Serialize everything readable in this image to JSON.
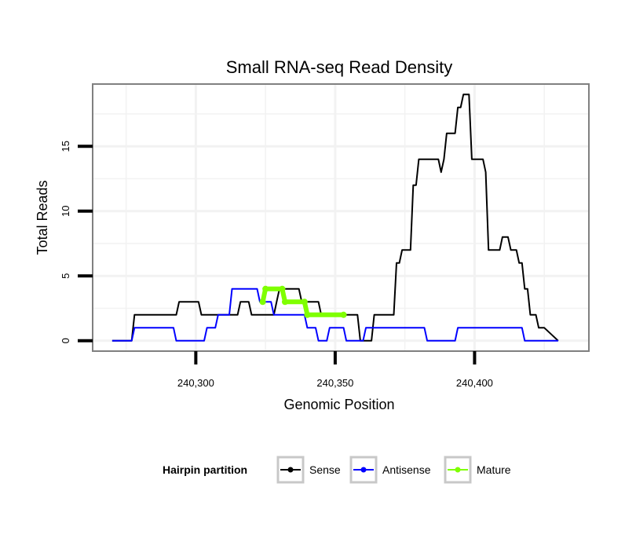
{
  "chart_data": {
    "type": "line",
    "title": "Small RNA-seq Read Density",
    "xlabel": "Genomic Position",
    "ylabel": "Total Reads",
    "xlim": [
      240263,
      240441
    ],
    "ylim": [
      -0.8,
      19.8
    ],
    "x_ticks": [
      240300,
      240350,
      240400
    ],
    "x_tick_labels": [
      "240,300",
      "240,350",
      "240,400"
    ],
    "y_ticks": [
      0,
      5,
      10,
      15
    ],
    "y_tick_labels": [
      "0",
      "5",
      "10",
      "15"
    ],
    "grid": true,
    "legend": {
      "title": "Hairpin partition",
      "position": "bottom",
      "entries": [
        {
          "name": "Sense",
          "color": "#000000"
        },
        {
          "name": "Antisense",
          "color": "#0000ff"
        },
        {
          "name": "Mature",
          "color": "#7fff00"
        }
      ]
    },
    "series": [
      {
        "name": "Sense",
        "color": "#000000",
        "x": [
          240270,
          240277,
          240278,
          240293,
          240294,
          240301,
          240302,
          240315,
          240316,
          240319,
          240320,
          240328,
          240329,
          240330,
          240331,
          240337,
          240338,
          240344,
          240345,
          240346,
          240347,
          240358,
          240359,
          240363,
          240364,
          240371,
          240372,
          240373,
          240374,
          240375,
          240377,
          240378,
          240379,
          240380,
          240381,
          240382,
          240387,
          240388,
          240389,
          240390,
          240393,
          240394,
          240395,
          240396,
          240397,
          240398,
          240399,
          240400,
          240403,
          240404,
          240405,
          240409,
          240410,
          240412,
          240413,
          240415,
          240416,
          240417,
          240418,
          240419,
          240420,
          240422,
          240423,
          240425,
          240430
        ],
        "y": [
          0,
          0,
          2,
          2,
          3,
          3,
          2,
          2,
          3,
          3,
          2,
          2,
          3,
          4,
          4,
          4,
          3,
          3,
          2,
          2,
          2,
          2,
          0,
          0,
          2,
          2,
          6,
          6,
          7,
          7,
          7,
          12,
          12,
          14,
          14,
          14,
          14,
          13,
          14,
          16,
          16,
          18,
          18,
          19,
          19,
          19,
          14,
          14,
          14,
          13,
          7,
          7,
          8,
          8,
          7,
          7,
          6,
          6,
          4,
          4,
          2,
          2,
          1,
          1,
          0
        ]
      },
      {
        "name": "Antisense",
        "color": "#0000ff",
        "x": [
          240270,
          240277,
          240278,
          240292,
          240293,
          240303,
          240304,
          240307,
          240308,
          240312,
          240313,
          240322,
          240323,
          240327,
          240328,
          240339,
          240340,
          240343,
          240344,
          240347,
          240348,
          240353,
          240354,
          240360,
          240361,
          240382,
          240383,
          240393,
          240394,
          240417,
          240418,
          240430
        ],
        "y": [
          0,
          0,
          1,
          1,
          0,
          0,
          1,
          1,
          2,
          2,
          4,
          4,
          3,
          3,
          2,
          2,
          1,
          1,
          0,
          0,
          1,
          1,
          0,
          0,
          1,
          1,
          0,
          0,
          1,
          1,
          0,
          0
        ]
      },
      {
        "name": "Mature",
        "color": "#7fff00",
        "x": [
          240324,
          240325,
          240331,
          240332,
          240339,
          240340,
          240353
        ],
        "y": [
          3,
          4,
          4,
          3,
          3,
          2,
          2
        ]
      }
    ]
  }
}
